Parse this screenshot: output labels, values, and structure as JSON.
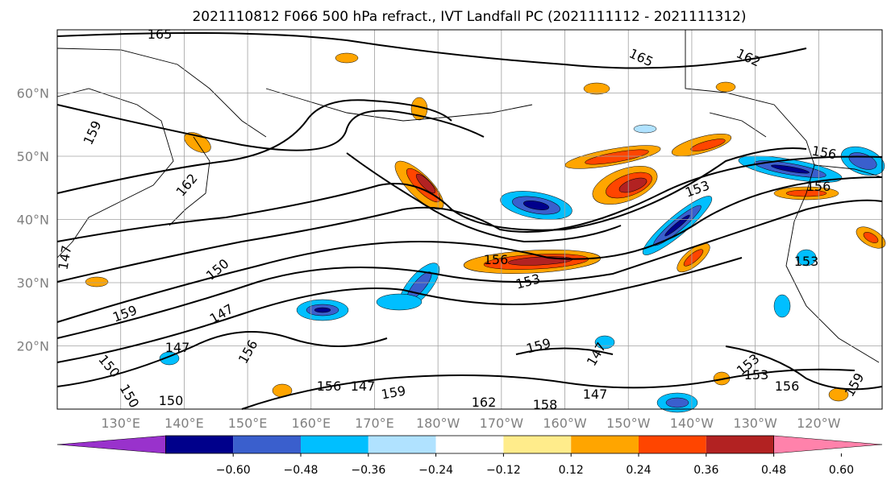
{
  "title": "2021110812 F066 500 hPa refract., IVT Landfall PC (2021111112 - 2021111312)",
  "map": {
    "extent": {
      "lon_min": 120,
      "lon_max": 250,
      "lat_min": 10,
      "lat_max": 70
    },
    "lat_ticks": [
      {
        "value": 20,
        "label": "20°N"
      },
      {
        "value": 30,
        "label": "30°N"
      },
      {
        "value": 40,
        "label": "40°N"
      },
      {
        "value": 50,
        "label": "50°N"
      },
      {
        "value": 60,
        "label": "60°N"
      }
    ],
    "lon_ticks": [
      {
        "value": 130,
        "label": "130°E"
      },
      {
        "value": 140,
        "label": "140°E"
      },
      {
        "value": 150,
        "label": "150°E"
      },
      {
        "value": 160,
        "label": "160°E"
      },
      {
        "value": 170,
        "label": "170°E"
      },
      {
        "value": 180,
        "label": "180°W"
      },
      {
        "value": 190,
        "label": "170°W"
      },
      {
        "value": 200,
        "label": "160°W"
      },
      {
        "value": 210,
        "label": "150°W"
      },
      {
        "value": 220,
        "label": "140°W"
      },
      {
        "value": 230,
        "label": "130°W"
      },
      {
        "value": 240,
        "label": "120°W"
      }
    ],
    "grid": true,
    "gridline_spacing_deg": 10,
    "contour_labels": [
      "165",
      "165",
      "162",
      "159",
      "162",
      "156",
      "153",
      "156",
      "159",
      "150",
      "147",
      "147",
      "156",
      "150",
      "150",
      "156",
      "159",
      "153",
      "156",
      "159",
      "147",
      "147",
      "153",
      "162",
      "158",
      "153",
      "153",
      "156",
      "159",
      "150",
      "147",
      "147"
    ]
  },
  "colorbar": {
    "colors": [
      "#9932cc",
      "#00008b",
      "#3a5fcd",
      "#00bfff",
      "#b0e2ff",
      "#ffffff",
      "#ffec8b",
      "#ffa500",
      "#ff4500",
      "#b22222",
      "#ff82ab"
    ],
    "tick_labels": [
      "−0.60",
      "−0.48",
      "−0.36",
      "−0.24",
      "−0.12",
      "0.12",
      "0.24",
      "0.36",
      "0.48",
      "0.60"
    ],
    "extend": "both"
  }
}
